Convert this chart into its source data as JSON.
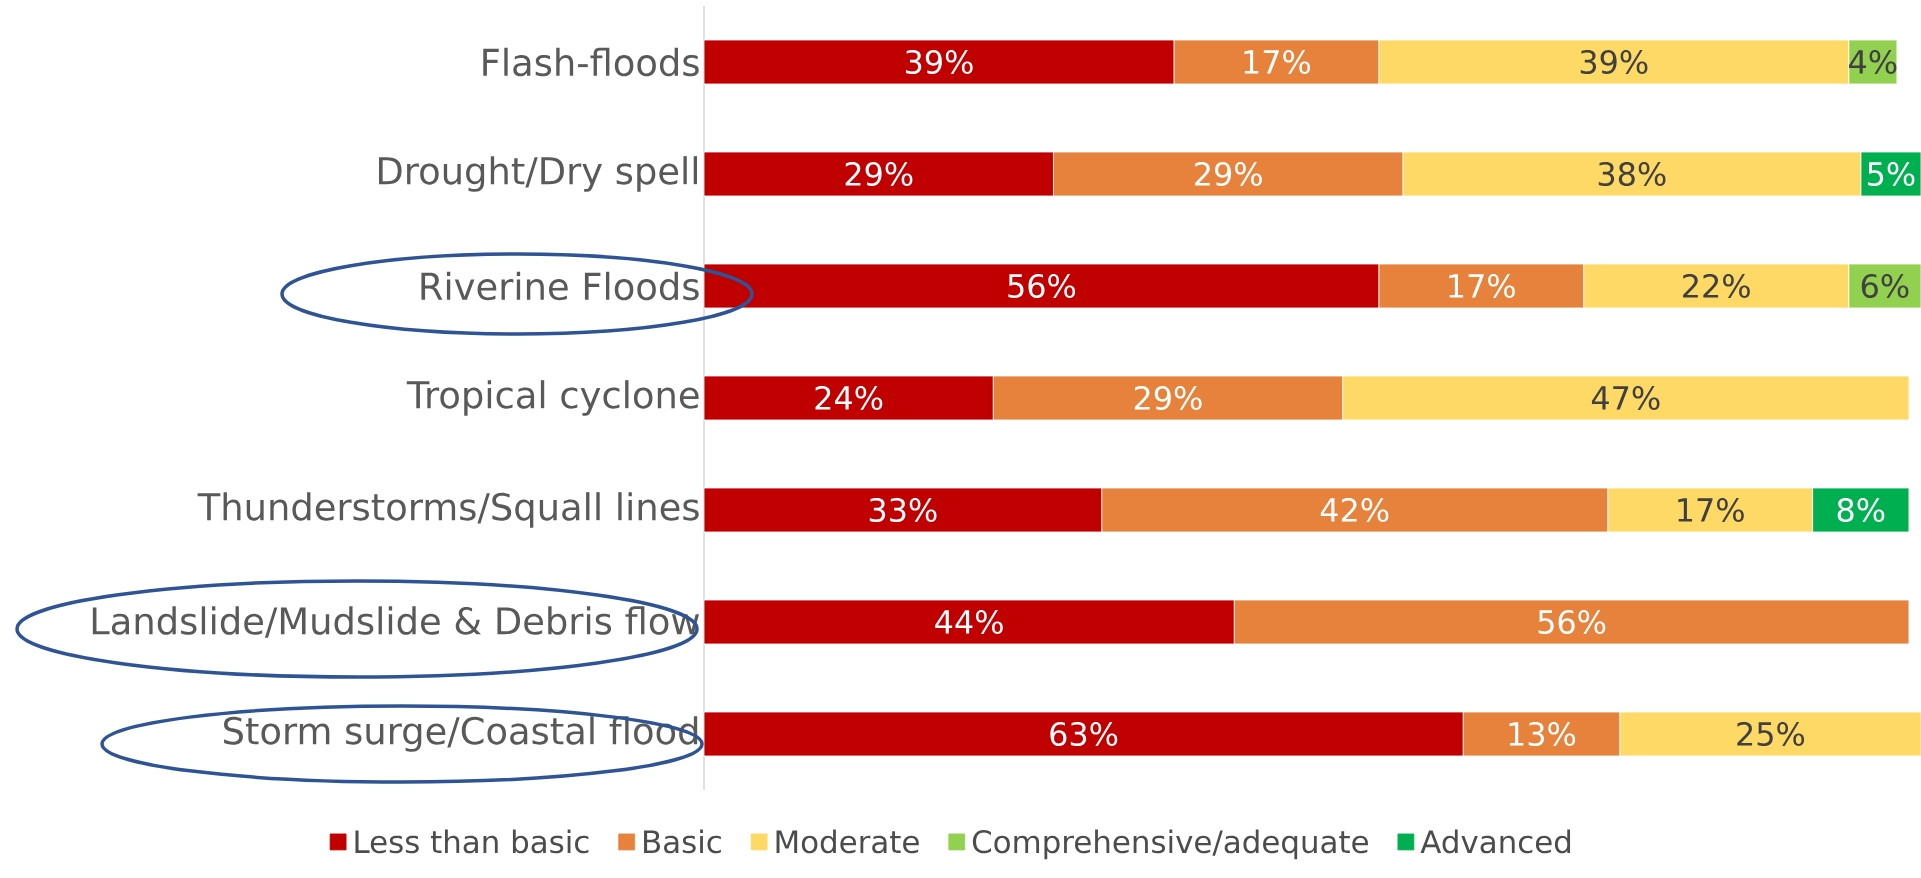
{
  "chart_data": {
    "type": "bar",
    "orientation": "horizontal",
    "stacked": true,
    "legend": "bottom",
    "categories": [
      "Flash-floods",
      "Drought/Dry spell",
      "Riverine Floods",
      "Tropical cyclone",
      "Thunderstorms/Squall lines",
      "Landslide/Mudslide & Debris flow",
      "Storm surge/Coastal flood"
    ],
    "series": [
      {
        "name": "Less than basic",
        "color": "#c00000",
        "values": [
          39,
          29,
          56,
          24,
          33,
          44,
          63
        ],
        "value_labels": [
          "39%",
          "29%",
          "56%",
          "24%",
          "33%",
          "44%",
          "63%"
        ]
      },
      {
        "name": "Basic",
        "color": "#e6823c",
        "values": [
          17,
          29,
          17,
          29,
          42,
          56,
          13
        ],
        "value_labels": [
          "17%",
          "29%",
          "17%",
          "29%",
          "42%",
          "56%",
          "13%"
        ]
      },
      {
        "name": "Moderate",
        "color": "#ffd966",
        "values": [
          39,
          38,
          22,
          47,
          17,
          null,
          25
        ],
        "value_labels": [
          "39%",
          "38%",
          "22%",
          "47%",
          "17%",
          null,
          "25%"
        ]
      },
      {
        "name": "Comprehensive/adequate",
        "color": "#92d050",
        "values": [
          4,
          null,
          6,
          null,
          null,
          null,
          null
        ],
        "value_labels": [
          "4%",
          null,
          "6%",
          null,
          null,
          null,
          null
        ]
      },
      {
        "name": "Advanced",
        "color": "#00b050",
        "values": [
          null,
          5,
          null,
          null,
          8,
          null,
          null
        ],
        "value_labels": [
          null,
          "5%",
          null,
          null,
          "8%",
          null,
          null
        ]
      }
    ]
  }
}
